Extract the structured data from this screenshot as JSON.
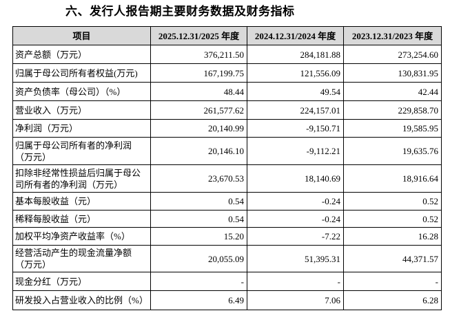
{
  "header": {
    "title": "六、发行人报告期主要财务数据及财务指标"
  },
  "table": {
    "columns": [
      "项目",
      "2025.12.31/2025 年度",
      "2024.12.31/2024 年度",
      "2023.12.31/2023 年度"
    ],
    "rows": [
      [
        "资产总额（万元）",
        "376,211.50",
        "284,181.88",
        "273,254.60"
      ],
      [
        "归属于母公司所有者权益(万元)",
        "167,199.75",
        "121,556.09",
        "130,831.95"
      ],
      [
        "资产负债率（母公司）（%）",
        "48.44",
        "49.54",
        "42.44"
      ],
      [
        "营业收入（万元）",
        "261,577.62",
        "224,157.01",
        "229,858.70"
      ],
      [
        "净利润（万元）",
        "20,140.99",
        "-9,150.71",
        "19,585.95"
      ],
      [
        "归属于母公司所有者的净利润（万元）",
        "20,146.10",
        "-9,112.21",
        "19,635.76"
      ],
      [
        "扣除非经常性损益后归属于母公司所有者的净利润（万元）",
        "23,670.53",
        "18,140.69",
        "18,916.64"
      ],
      [
        "基本每股收益（元）",
        "0.54",
        "-0.24",
        "0.52"
      ],
      [
        "稀释每股收益（元）",
        "0.54",
        "-0.24",
        "0.52"
      ],
      [
        "加权平均净资产收益率（%）",
        "15.20",
        "-7.22",
        "16.28"
      ],
      [
        "经营活动产生的现金流量净额（万元）",
        "20,055.09",
        "51,395.31",
        "44,371.57"
      ],
      [
        "现金分红（万元）",
        "-",
        "-",
        "-"
      ],
      [
        "研发投入占营业收入的比例（%）",
        "6.49",
        "7.06",
        "6.28"
      ]
    ]
  }
}
